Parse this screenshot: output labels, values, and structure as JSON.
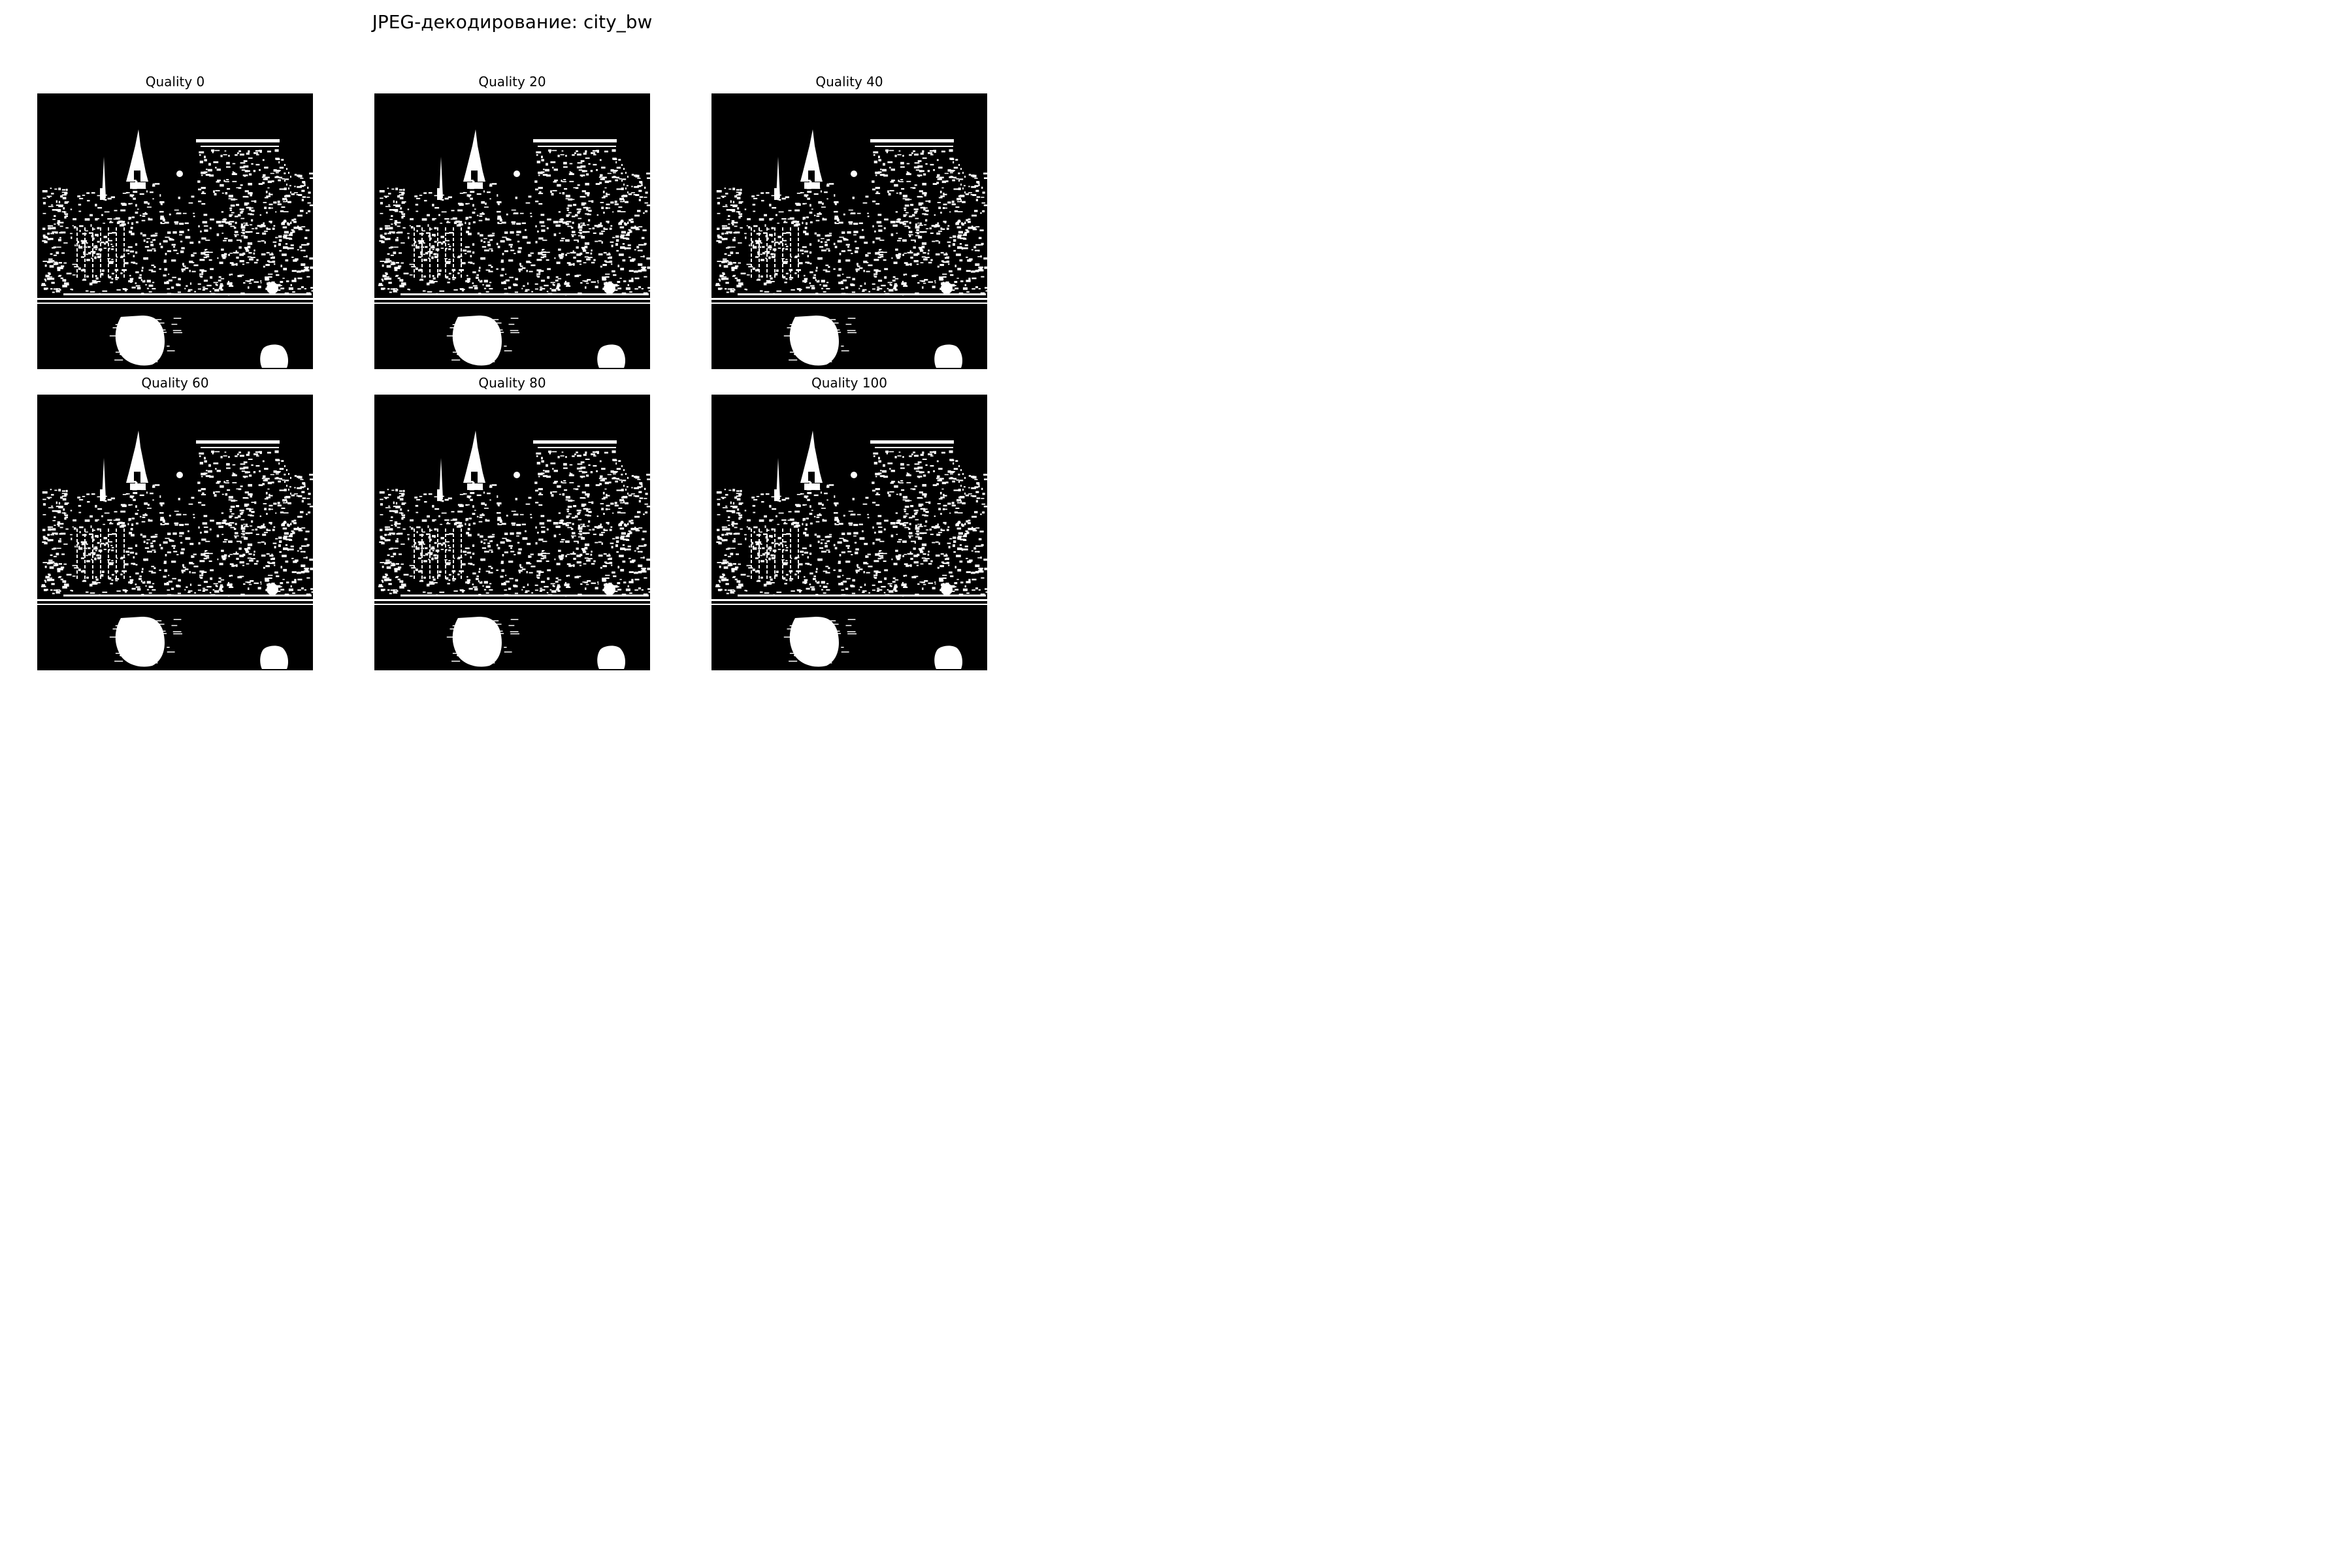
{
  "figure": {
    "title": "JPEG-декодирование: city_bw"
  },
  "panels": [
    {
      "label": "Quality 0"
    },
    {
      "label": "Quality 20"
    },
    {
      "label": "Quality 40"
    },
    {
      "label": "Quality 60"
    },
    {
      "label": "Quality 80"
    },
    {
      "label": "Quality 100"
    }
  ],
  "colors": {
    "background": "#ffffff",
    "image_dark": "#000000",
    "image_light": "#ffffff"
  }
}
